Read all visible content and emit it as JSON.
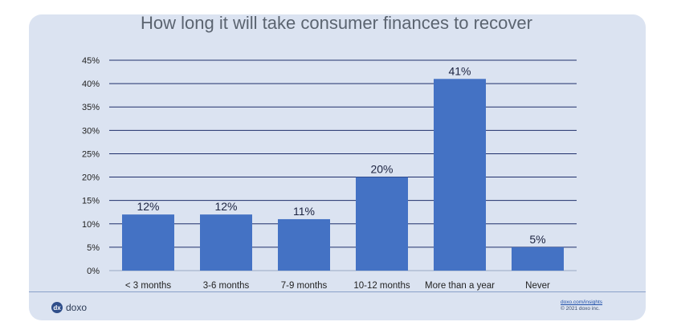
{
  "chart_data": {
    "type": "bar",
    "title": "How long it will take consumer finances to recover",
    "categories": [
      "< 3 months",
      "3-6 months",
      "7-9 months",
      "10-12 months",
      "More than a year",
      "Never"
    ],
    "values": [
      12,
      12,
      11,
      20,
      41,
      5
    ],
    "data_labels": [
      "12%",
      "12%",
      "11%",
      "20%",
      "41%",
      "5%"
    ],
    "ylim": [
      0,
      45
    ],
    "yticks": [
      0,
      5,
      10,
      15,
      20,
      25,
      30,
      35,
      40,
      45
    ],
    "ytick_labels": [
      "0%",
      "5%",
      "10%",
      "15%",
      "20%",
      "25%",
      "30%",
      "35%",
      "40%",
      "45%"
    ],
    "grid": true,
    "bar_color": "#4472c4",
    "grid_color": "#1f2f6b"
  },
  "footer": {
    "brand": "doxo",
    "link": "doxo.com/insights",
    "copyright": "© 2021 doxo inc."
  }
}
